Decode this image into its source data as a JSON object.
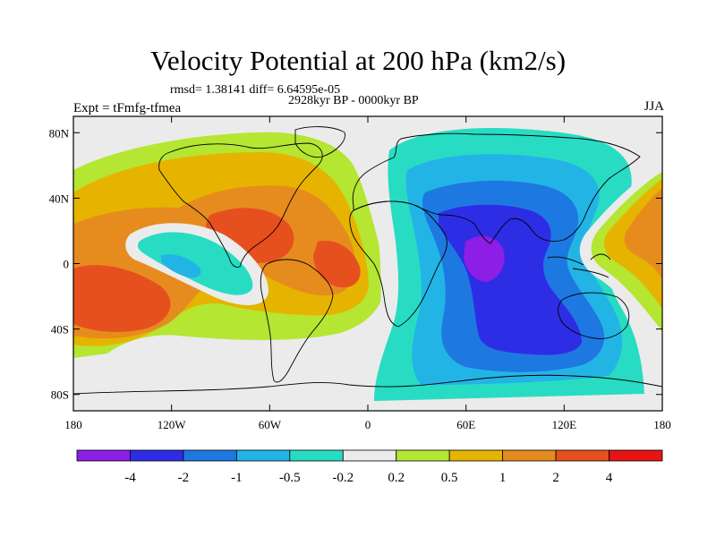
{
  "title": "Velocity Potential at 200 hPa (km2/s)",
  "rmsd_line": "rmsd= 1.38141 diff= 6.64595e-05",
  "period": "2928kyr BP - 0000kyr BP",
  "experiment": "Expt = tFmfg-tfmea",
  "season": "JJA",
  "y_ticks": [
    {
      "label": "80N",
      "lat": 80
    },
    {
      "label": "40N",
      "lat": 40
    },
    {
      "label": "0",
      "lat": 0
    },
    {
      "label": "40S",
      "lat": -40
    },
    {
      "label": "80S",
      "lat": -80
    }
  ],
  "x_ticks": [
    {
      "label": "180",
      "lon": -180
    },
    {
      "label": "120W",
      "lon": -120
    },
    {
      "label": "60W",
      "lon": -60
    },
    {
      "label": "0",
      "lon": 0
    },
    {
      "label": "60E",
      "lon": 60
    },
    {
      "label": "120E",
      "lon": 120
    },
    {
      "label": "180",
      "lon": 180
    }
  ],
  "colorbar": {
    "colors": [
      "#8c1ee6",
      "#2d2de6",
      "#1e78e1",
      "#23b4e6",
      "#28dcc3",
      "#ebebeb",
      "#b4e632",
      "#e6b400",
      "#e68c1e",
      "#e6501e",
      "#e61414"
    ],
    "labels": [
      "-4",
      "-2",
      "-1",
      "-0.5",
      "-0.2",
      "0.2",
      "0.5",
      "1",
      "2",
      "4"
    ]
  },
  "field_colors": {
    "background": "#ebebeb",
    "positive_weak": "#b4e632",
    "positive_mid": "#e6b400",
    "positive_strong": "#e68c1e",
    "positive_max": "#e6501e",
    "negative_weak": "#28dcc3",
    "negative_mid": "#23b4e6",
    "negative_strong": "#1e78e1",
    "negative_deep": "#2d2de6",
    "negative_max": "#8c1ee6"
  }
}
